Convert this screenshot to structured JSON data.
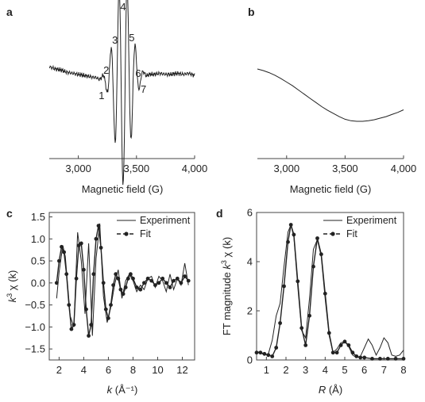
{
  "chart_data": [
    {
      "panel": "a",
      "type": "line",
      "xlabel": "Magnetic field (G)",
      "ylabel": "",
      "xlim": [
        2750,
        4000
      ],
      "xticks": [
        3000,
        3500,
        4000
      ],
      "xtick_labels": [
        "3,000",
        "3,500",
        "4,000"
      ],
      "y_axis": "none",
      "peak_labels": [
        {
          "text": "1",
          "x": 3200
        },
        {
          "text": "2",
          "x": 3240
        },
        {
          "text": "3",
          "x": 3315
        },
        {
          "text": "4",
          "x": 3385
        },
        {
          "text": "5",
          "x": 3460
        },
        {
          "text": "6",
          "x": 3515
        },
        {
          "text": "7",
          "x": 3560
        }
      ],
      "series": [
        {
          "x": [
            2750,
            2800,
            2850,
            2900,
            2950,
            3000,
            3050,
            3100,
            3150,
            3200,
            3250,
            3300,
            3350,
            3400,
            3450,
            3500,
            3550,
            3600,
            3650,
            3700,
            3750,
            3800,
            3850,
            3900,
            3950,
            4000
          ],
          "y": [
            0.1,
            0.08,
            0.07,
            0.05,
            0.04,
            0.03,
            0.02,
            0.01,
            0.0,
            -0.01,
            -0.02,
            -0.02,
            -0.02,
            -0.01,
            0.0,
            0.01,
            0.02,
            0.03,
            0.03,
            0.04,
            0.03,
            0.03,
            0.04,
            0.03,
            0.04,
            0.02
          ]
        }
      ]
    },
    {
      "panel": "b",
      "type": "line",
      "xlabel": "Magnetic field (G)",
      "ylabel": "",
      "xlim": [
        2750,
        4000
      ],
      "xticks": [
        3000,
        3500,
        4000
      ],
      "xtick_labels": [
        "3,000",
        "3,500",
        "4,000"
      ],
      "y_axis": "none",
      "series": [
        {
          "x": [
            2750,
            2800,
            2850,
            2900,
            2950,
            3000,
            3050,
            3100,
            3150,
            3200,
            3250,
            3300,
            3350,
            3400,
            3450,
            3500,
            3550,
            3600,
            3650,
            3700,
            3750,
            3800,
            3850,
            3900,
            3950,
            4000
          ],
          "y": [
            1.0,
            0.97,
            0.93,
            0.88,
            0.82,
            0.75,
            0.68,
            0.6,
            0.52,
            0.44,
            0.36,
            0.28,
            0.21,
            0.15,
            0.09,
            0.04,
            0.01,
            0.0,
            0.0,
            0.01,
            0.03,
            0.06,
            0.09,
            0.13,
            0.17,
            0.22
          ]
        }
      ]
    },
    {
      "panel": "c",
      "type": "line",
      "xlabel_var": "k",
      "xlabel_unit": "(Å⁻¹)",
      "ylabel_var": "k",
      "ylabel_sup": "3",
      "ylabel_rest": "χ (k)",
      "xlim": [
        1.2,
        13
      ],
      "ylim": [
        -1.75,
        1.6
      ],
      "xticks": [
        2,
        4,
        6,
        8,
        10,
        12
      ],
      "xtick_labels": [
        "2",
        "4",
        "6",
        "8",
        "10",
        "12"
      ],
      "yticks": [
        -1.5,
        -1.0,
        -0.5,
        0.0,
        0.5,
        1.0,
        1.5
      ],
      "ytick_labels": [
        "−1.5",
        "−1.0",
        "−0.5",
        "0.0",
        "0.5",
        "1.0",
        "1.5"
      ],
      "legend": "top-right",
      "series": [
        {
          "name": "Experiment",
          "style": "line",
          "x": [
            1.8,
            2.0,
            2.3,
            2.5,
            2.9,
            3.2,
            3.5,
            3.8,
            4.1,
            4.4,
            4.7,
            5.0,
            5.3,
            5.6,
            5.9,
            6.2,
            6.5,
            6.8,
            7.1,
            7.4,
            7.7,
            8.0,
            8.3,
            8.6,
            8.9,
            9.2,
            9.5,
            9.8,
            10.1,
            10.4,
            10.7,
            11.0,
            11.3,
            11.6,
            11.9,
            12.2,
            12.5
          ],
          "y": [
            -0.35,
            0.25,
            0.85,
            0.6,
            -0.75,
            -1.0,
            1.15,
            0.5,
            -0.7,
            0.9,
            -1.2,
            0.55,
            1.35,
            -0.3,
            -0.9,
            -0.55,
            -0.05,
            0.3,
            -0.35,
            0.05,
            0.2,
            0.05,
            -0.2,
            -0.05,
            -0.15,
            0.1,
            0.15,
            -0.1,
            0.15,
            0.05,
            -0.2,
            0.2,
            -0.15,
            0.1,
            -0.05,
            0.45,
            -0.05
          ]
        },
        {
          "name": "Fit",
          "style": "line-dots",
          "x": [
            1.8,
            2.0,
            2.2,
            2.4,
            2.6,
            2.8,
            3.0,
            3.2,
            3.4,
            3.6,
            3.8,
            4.0,
            4.2,
            4.4,
            4.6,
            4.8,
            5.0,
            5.2,
            5.4,
            5.6,
            5.8,
            6.0,
            6.2,
            6.4,
            6.6,
            6.8,
            7.0,
            7.2,
            7.4,
            7.6,
            7.8,
            8.0,
            8.3,
            8.6,
            8.9,
            9.2,
            9.5,
            9.8,
            10.1,
            10.4,
            10.7,
            11.0,
            11.3,
            11.6,
            11.9,
            12.2,
            12.5
          ],
          "y": [
            0.0,
            0.5,
            0.82,
            0.7,
            0.2,
            -0.5,
            -1.05,
            -0.95,
            0.1,
            0.85,
            0.9,
            0.3,
            -0.6,
            -1.2,
            -0.95,
            0.2,
            1.0,
            1.3,
            0.8,
            0.0,
            -0.6,
            -0.8,
            -0.5,
            -0.05,
            0.2,
            0.1,
            -0.15,
            -0.25,
            -0.1,
            0.1,
            0.2,
            0.1,
            -0.1,
            -0.15,
            0.0,
            0.1,
            0.05,
            -0.05,
            0.0,
            0.1,
            0.0,
            -0.1,
            0.05,
            0.1,
            0.0,
            0.15,
            0.05
          ]
        }
      ]
    },
    {
      "panel": "d",
      "type": "line",
      "xlabel_var": "R",
      "xlabel_unit": "(Å)",
      "ylabel_prefix": "FT magnitude ",
      "ylabel_var": "k",
      "ylabel_sup": "3",
      "ylabel_rest": "χ (k)",
      "xlim": [
        0.5,
        8
      ],
      "ylim": [
        0,
        6
      ],
      "xticks": [
        1,
        2,
        3,
        4,
        5,
        6,
        7,
        8
      ],
      "xtick_labels": [
        "1",
        "2",
        "3",
        "4",
        "5",
        "6",
        "7",
        "8"
      ],
      "yticks": [
        0,
        2,
        4,
        6
      ],
      "ytick_labels": [
        "0",
        "2",
        "4",
        "6"
      ],
      "legend": "top-right",
      "series": [
        {
          "name": "Experiment",
          "style": "line",
          "x": [
            0.5,
            0.7,
            0.9,
            1.1,
            1.3,
            1.5,
            1.7,
            1.9,
            2.1,
            2.25,
            2.4,
            2.6,
            2.8,
            3.0,
            3.2,
            3.4,
            3.6,
            3.8,
            4.0,
            4.2,
            4.4,
            4.6,
            4.8,
            5.0,
            5.2,
            5.4,
            5.6,
            5.8,
            6.0,
            6.2,
            6.4,
            6.6,
            6.8,
            7.0,
            7.2,
            7.4,
            7.6,
            7.8,
            8.0
          ],
          "y": [
            0.35,
            0.3,
            0.2,
            0.25,
            0.8,
            1.8,
            2.3,
            3.8,
            5.2,
            5.5,
            5.0,
            3.0,
            1.2,
            0.9,
            2.5,
            4.5,
            4.9,
            4.2,
            2.5,
            1.0,
            0.3,
            0.45,
            0.7,
            0.75,
            0.55,
            0.2,
            0.1,
            0.15,
            0.5,
            0.85,
            0.6,
            0.2,
            0.5,
            0.9,
            0.7,
            0.2,
            0.15,
            0.2,
            0.4
          ]
        },
        {
          "name": "Fit",
          "style": "line-dots",
          "x": [
            0.5,
            0.7,
            0.9,
            1.1,
            1.3,
            1.5,
            1.7,
            1.9,
            2.1,
            2.25,
            2.4,
            2.6,
            2.8,
            3.0,
            3.2,
            3.4,
            3.6,
            3.8,
            4.0,
            4.2,
            4.4,
            4.6,
            4.8,
            5.0,
            5.2,
            5.4,
            5.6,
            5.8,
            6.0,
            6.4,
            6.8,
            7.2,
            7.6,
            8.0
          ],
          "y": [
            0.3,
            0.3,
            0.25,
            0.2,
            0.15,
            0.5,
            1.5,
            3.0,
            4.8,
            5.5,
            5.1,
            3.2,
            1.3,
            0.6,
            1.8,
            3.8,
            4.95,
            4.3,
            2.7,
            1.1,
            0.3,
            0.3,
            0.6,
            0.75,
            0.6,
            0.3,
            0.15,
            0.1,
            0.1,
            0.05,
            0.05,
            0.05,
            0.05,
            0.05
          ]
        }
      ]
    }
  ],
  "panel_labels": [
    "a",
    "b",
    "c",
    "d"
  ]
}
